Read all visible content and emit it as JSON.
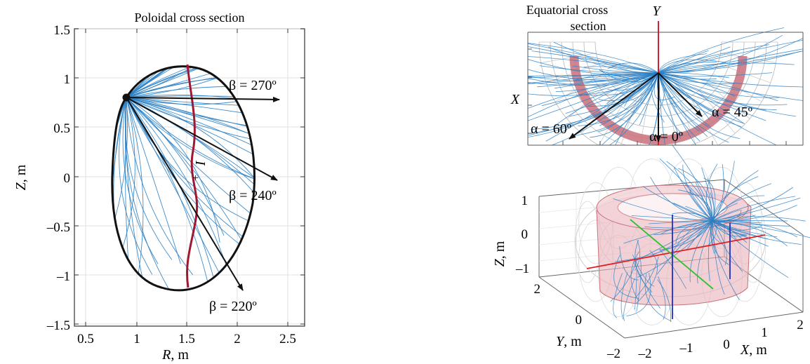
{
  "left_panel": {
    "title": "Poloidal cross section",
    "xlabel_var": "R",
    "xlabel_unit": ", m",
    "ylabel_var": "Z",
    "ylabel_unit": ", m",
    "x_ticks": [
      "0.5",
      "1",
      "1.5",
      "2",
      "2.5"
    ],
    "y_ticks": [
      "1.5",
      "1",
      "0.5",
      "0",
      "–0.5",
      "–1",
      "–1.5"
    ],
    "beta_labels": [
      "β = 270º",
      "β = 240º",
      "β = 220º"
    ],
    "current_label": "I"
  },
  "top_right_panel": {
    "title_line1": "Equatorial cross",
    "title_line2": "section",
    "y_axis_label": "Y",
    "x_axis_label": "X",
    "alpha_labels": [
      "α = 60º",
      "α = 0º",
      "α = 45º"
    ]
  },
  "bottom_right_panel": {
    "z_label_var": "Z",
    "z_label_unit": ", m",
    "y_label_var": "Y",
    "y_label_unit": ", m",
    "x_label_var": "X",
    "x_label_unit": ", m",
    "z_ticks": [
      "1",
      "0",
      "–1"
    ],
    "y_ticks": [
      "2",
      "0",
      "–2"
    ],
    "x_ticks": [
      "–2",
      "–1",
      "0",
      "1",
      "2"
    ]
  },
  "colors": {
    "field_lines": "#2a7fc4",
    "current_line": "#a01830",
    "boundary": "#111111",
    "arrows": "#111111",
    "band": "#c9707a",
    "torus_fill": "#e8b2ba",
    "grid": "#dddddd"
  }
}
